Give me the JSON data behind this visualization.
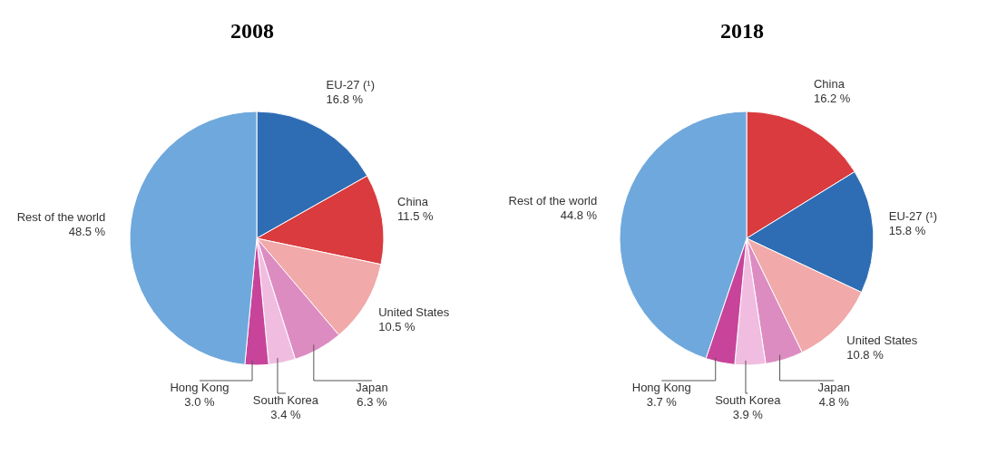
{
  "chart_data": [
    {
      "type": "pie",
      "title": "2008",
      "categories": [
        "EU-27 (¹)",
        "China",
        "United States",
        "Japan",
        "South Korea",
        "Hong Kong",
        "Rest of the world"
      ],
      "values": [
        16.8,
        11.5,
        10.5,
        6.3,
        3.4,
        3.0,
        48.5
      ],
      "colors": [
        "#2e6db4",
        "#d93b3e",
        "#f1a9a9",
        "#dd8cc2",
        "#f0bde0",
        "#c8449a",
        "#6fa8dc"
      ],
      "value_labels": [
        "16.8 %",
        "11.5 %",
        "10.5 %",
        "6.3 %",
        "3.4 %",
        "3.0 %",
        "48.5 %"
      ],
      "legend": false
    },
    {
      "type": "pie",
      "title": "2018",
      "categories": [
        "China",
        "EU-27 (¹)",
        "United States",
        "Japan",
        "South Korea",
        "Hong Kong",
        "Rest of the world"
      ],
      "values": [
        16.2,
        15.8,
        10.8,
        4.8,
        3.9,
        3.7,
        44.8
      ],
      "colors": [
        "#d93b3e",
        "#2e6db4",
        "#f1a9a9",
        "#dd8cc2",
        "#f0bde0",
        "#c8449a",
        "#6fa8dc"
      ],
      "value_labels": [
        "16.2 %",
        "15.8 %",
        "10.8 %",
        "4.8 %",
        "3.9 %",
        "3.7 %",
        "44.8 %"
      ],
      "legend": false
    }
  ]
}
